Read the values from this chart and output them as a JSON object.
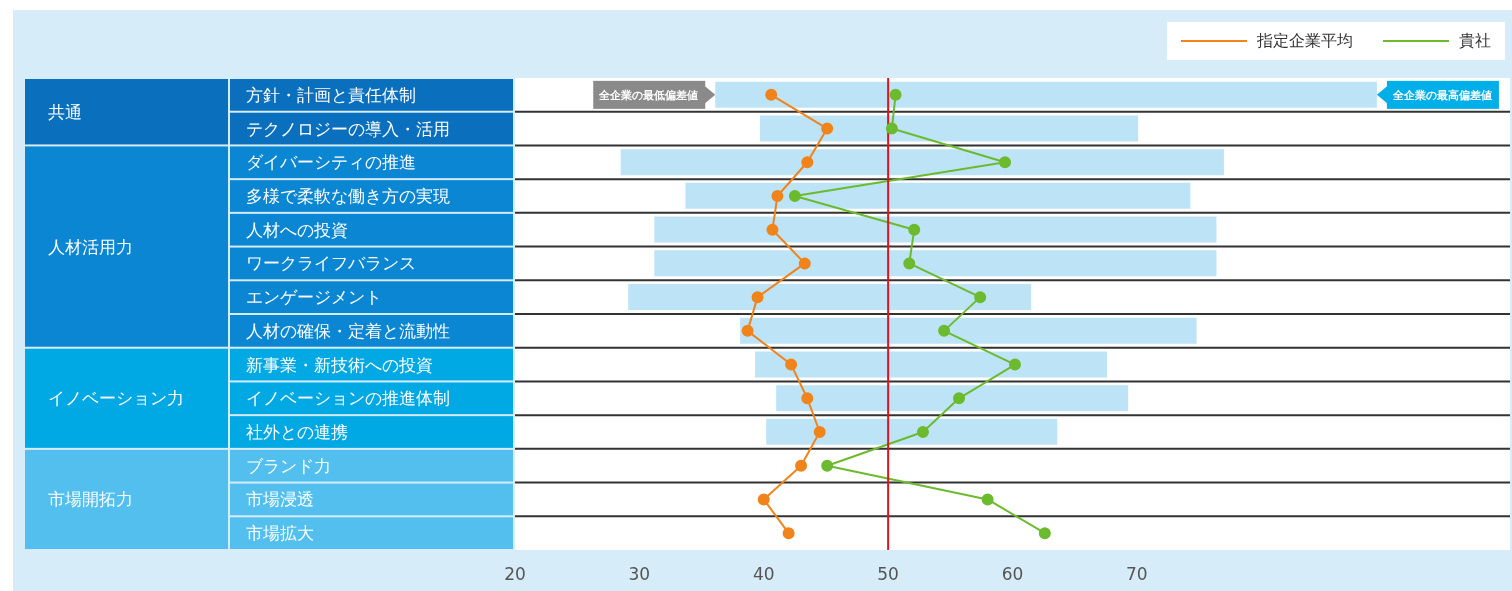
{
  "chart_data": {
    "type": "bar",
    "orientation": "horizontal",
    "categories": [
      "方針・計画と責任体制",
      "テクノロジーの導入・活用",
      "ダイバーシティの推進",
      "多様で柔軟な働き方の実現",
      "人材への投資",
      "ワークライフバランス",
      "エンゲージメント",
      "人材の確保・定着と流動性",
      "新事業・新技術への投資",
      "イノベーションの推進体制",
      "社外との連携",
      "ブランド力",
      "市場浸透",
      "市場拡大"
    ],
    "series": [
      {
        "type": "bar",
        "color": "#bde3f7",
        "base": [
          36.1,
          39.7,
          28.5,
          33.7,
          31.2,
          31.2,
          29.1,
          38.1,
          39.3,
          41.0,
          40.2,
          null,
          null,
          null
        ],
        "values": [
          53.2,
          30.4,
          48.5,
          40.6,
          45.2,
          45.2,
          32.4,
          36.7,
          28.3,
          28.3,
          23.4,
          null,
          null,
          null
        ]
      },
      {
        "type": "line",
        "name": "指定企業平均",
        "color": "#f0841a",
        "values": [
          40.6,
          45.1,
          43.5,
          41.1,
          40.7,
          43.3,
          39.5,
          38.7,
          42.2,
          43.5,
          44.5,
          43.0,
          40.0,
          42.0
        ]
      },
      {
        "type": "line",
        "name": "貴社",
        "color": "#6cba2e",
        "values": [
          50.6,
          50.3,
          59.4,
          42.5,
          52.1,
          51.7,
          57.4,
          54.5,
          60.2,
          55.7,
          52.8,
          45.1,
          58.0,
          62.6
        ]
      }
    ],
    "xlim": [
      20,
      100
    ],
    "xticks": [
      20,
      30,
      40,
      50,
      60,
      70
    ],
    "ref_lines": [
      {
        "axis": "x",
        "value": 50,
        "color": "#e0141e"
      }
    ],
    "grid": "y",
    "legend": "top right",
    "marker": "circle",
    "line_style": "solid",
    "annotations": [
      "共通",
      "人材活用力",
      "イノベーション力",
      "市場開拓力",
      {
        "text": "全企業の最低偏差値",
        "x": 36.1,
        "y": "方針・計画と責任体制"
      },
      {
        "text": "全企業の最高偏差値",
        "x": 89.3,
        "y": "方針・計画と責任体制"
      }
    ]
  }
}
